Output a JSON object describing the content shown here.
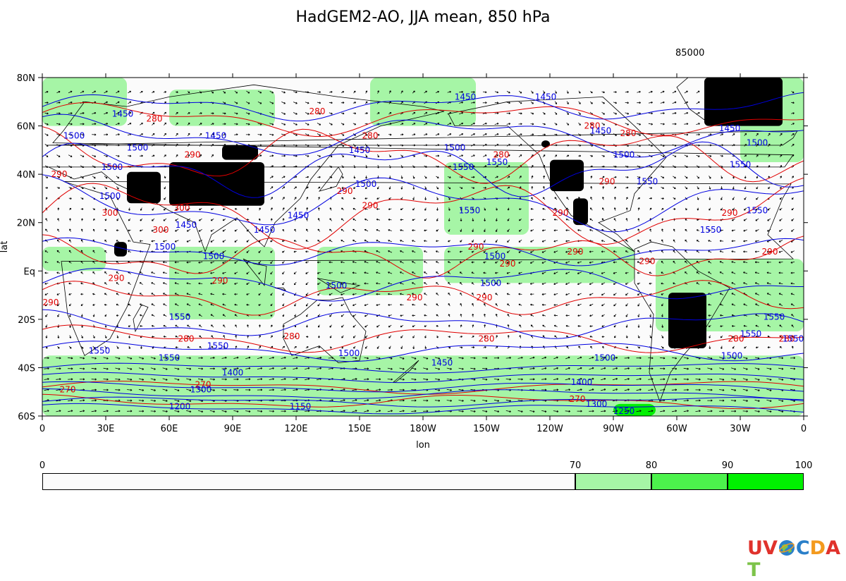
{
  "title": "HadGEM2-AO, JJA mean, 850 hPa",
  "level_label": "85000",
  "axes": {
    "xlabel": "lon",
    "ylabel": "lat",
    "xticks": [
      "0",
      "30E",
      "60E",
      "90E",
      "120E",
      "150E",
      "180W",
      "150W",
      "120W",
      "90W",
      "60W",
      "30W",
      "0"
    ],
    "yticks": [
      "80N",
      "60N",
      "40N",
      "20N",
      "Eq",
      "20S",
      "40S",
      "60S"
    ]
  },
  "legend": {
    "ticks": [
      "0",
      "70",
      "80",
      "90",
      "100"
    ],
    "colors": [
      "#fbfbfb",
      "#a6f5a6",
      "#4cf24c",
      "#00f000"
    ]
  },
  "map_colors": {
    "high_ground": "#000000",
    "temperature_contour": "#e00000",
    "height_contour": "#0000e0",
    "coastline": "#000000",
    "wind_vector": "#000000"
  },
  "chart_data": {
    "type": "heatmap",
    "title": "HadGEM2-AO, JJA mean, 850 hPa",
    "level": "85000",
    "xlabel": "lon",
    "ylabel": "lat",
    "lon_range": [
      0,
      360
    ],
    "lat_range": [
      -60,
      80
    ],
    "fill_levels": [
      0,
      70,
      80,
      90,
      100
    ],
    "temperature_contours": {
      "color": "#e00000",
      "labels": [
        {
          "v": "280",
          "lon": 53,
          "lat": 63
        },
        {
          "v": "280",
          "lon": 130,
          "lat": 66
        },
        {
          "v": "280",
          "lon": 155,
          "lat": 56
        },
        {
          "v": "280",
          "lon": 217,
          "lat": 48
        },
        {
          "v": "280",
          "lon": 260,
          "lat": 60
        },
        {
          "v": "280",
          "lon": 277,
          "lat": 57
        },
        {
          "v": "280",
          "lon": 68,
          "lat": -28
        },
        {
          "v": "280",
          "lon": 118,
          "lat": -27
        },
        {
          "v": "280",
          "lon": 210,
          "lat": -28
        },
        {
          "v": "280",
          "lon": 328,
          "lat": -28
        },
        {
          "v": "280",
          "lon": 352,
          "lat": -28
        },
        {
          "v": "290",
          "lon": 8,
          "lat": 40
        },
        {
          "v": "290",
          "lon": 71,
          "lat": 48
        },
        {
          "v": "290",
          "lon": 143,
          "lat": 33
        },
        {
          "v": "290",
          "lon": 155,
          "lat": 27
        },
        {
          "v": "290",
          "lon": 245,
          "lat": 24
        },
        {
          "v": "290",
          "lon": 325,
          "lat": 24
        },
        {
          "v": "290",
          "lon": 205,
          "lat": 10
        },
        {
          "v": "290",
          "lon": 220,
          "lat": 3
        },
        {
          "v": "290",
          "lon": 252,
          "lat": 8
        },
        {
          "v": "290",
          "lon": 286,
          "lat": 4
        },
        {
          "v": "290",
          "lon": 344,
          "lat": 8
        },
        {
          "v": "290",
          "lon": 84,
          "lat": -4
        },
        {
          "v": "290",
          "lon": 176,
          "lat": -11
        },
        {
          "v": "290",
          "lon": 209,
          "lat": -11
        },
        {
          "v": "290",
          "lon": 35,
          "lat": -3
        },
        {
          "v": "290",
          "lon": 4,
          "lat": -13
        },
        {
          "v": "290",
          "lon": 267,
          "lat": 37
        },
        {
          "v": "300",
          "lon": 32,
          "lat": 24
        },
        {
          "v": "300",
          "lon": 66,
          "lat": 26
        },
        {
          "v": "300",
          "lon": 56,
          "lat": 17
        },
        {
          "v": "270",
          "lon": 12,
          "lat": -49
        },
        {
          "v": "270",
          "lon": 76,
          "lat": -47
        },
        {
          "v": "270",
          "lon": 253,
          "lat": -53
        }
      ]
    },
    "height_contours": {
      "color": "#0000e0",
      "labels": [
        {
          "v": "1450",
          "lon": 38,
          "lat": 65
        },
        {
          "v": "1500",
          "lon": 15,
          "lat": 56
        },
        {
          "v": "1450",
          "lon": 82,
          "lat": 56
        },
        {
          "v": "1500",
          "lon": 45,
          "lat": 51
        },
        {
          "v": "1450",
          "lon": 150,
          "lat": 50
        },
        {
          "v": "1500",
          "lon": 195,
          "lat": 51
        },
        {
          "v": "1450",
          "lon": 200,
          "lat": 72
        },
        {
          "v": "1450",
          "lon": 238,
          "lat": 72
        },
        {
          "v": "1450",
          "lon": 264,
          "lat": 58
        },
        {
          "v": "1450",
          "lon": 325,
          "lat": 59
        },
        {
          "v": "1500",
          "lon": 275,
          "lat": 48
        },
        {
          "v": "1500",
          "lon": 338,
          "lat": 53
        },
        {
          "v": "1550",
          "lon": 199,
          "lat": 43
        },
        {
          "v": "1550",
          "lon": 215,
          "lat": 45
        },
        {
          "v": "1550",
          "lon": 286,
          "lat": 37
        },
        {
          "v": "1550",
          "lon": 330,
          "lat": 44
        },
        {
          "v": "1550",
          "lon": 202,
          "lat": 25
        },
        {
          "v": "1550",
          "lon": 338,
          "lat": 25
        },
        {
          "v": "1550",
          "lon": 316,
          "lat": 17
        },
        {
          "v": "1500",
          "lon": 33,
          "lat": 43
        },
        {
          "v": "1500",
          "lon": 32,
          "lat": 31
        },
        {
          "v": "1500",
          "lon": 153,
          "lat": 36
        },
        {
          "v": "1450",
          "lon": 68,
          "lat": 19
        },
        {
          "v": "1450",
          "lon": 105,
          "lat": 17
        },
        {
          "v": "1450",
          "lon": 121,
          "lat": 23
        },
        {
          "v": "1500",
          "lon": 58,
          "lat": 10
        },
        {
          "v": "1500",
          "lon": 81,
          "lat": 6
        },
        {
          "v": "1500",
          "lon": 214,
          "lat": 6
        },
        {
          "v": "1500",
          "lon": 212,
          "lat": -5
        },
        {
          "v": "1500",
          "lon": 139,
          "lat": -6
        },
        {
          "v": "1550",
          "lon": 65,
          "lat": -19
        },
        {
          "v": "1550",
          "lon": 27,
          "lat": -33
        },
        {
          "v": "1550",
          "lon": 60,
          "lat": -36
        },
        {
          "v": "1550",
          "lon": 83,
          "lat": -31
        },
        {
          "v": "1500",
          "lon": 145,
          "lat": -34
        },
        {
          "v": "1450",
          "lon": 189,
          "lat": -38
        },
        {
          "v": "1500",
          "lon": 266,
          "lat": -36
        },
        {
          "v": "1500",
          "lon": 326,
          "lat": -35
        },
        {
          "v": "1550",
          "lon": 346,
          "lat": -19
        },
        {
          "v": "1550",
          "lon": 335,
          "lat": -26
        },
        {
          "v": "1550",
          "lon": 355,
          "lat": -28
        },
        {
          "v": "1400",
          "lon": 90,
          "lat": -42
        },
        {
          "v": "1400",
          "lon": 255,
          "lat": -46
        },
        {
          "v": "1300",
          "lon": 75,
          "lat": -49
        },
        {
          "v": "1300",
          "lon": 262,
          "lat": -55
        },
        {
          "v": "1200",
          "lon": 65,
          "lat": -56
        },
        {
          "v": "1150",
          "lon": 122,
          "lat": -56
        },
        {
          "v": "1250",
          "lon": 275,
          "lat": -58
        }
      ]
    },
    "high_ground_regions": [
      {
        "lon": [
          60,
          105
        ],
        "lat": [
          27,
          45
        ]
      },
      {
        "lon": [
          85,
          102
        ],
        "lat": [
          46,
          52
        ]
      },
      {
        "lon": [
          40,
          56
        ],
        "lat": [
          28,
          41
        ]
      },
      {
        "lon": [
          240,
          256
        ],
        "lat": [
          33,
          46
        ]
      },
      {
        "lon": [
          251,
          258
        ],
        "lat": [
          19,
          30
        ]
      },
      {
        "lon": [
          296,
          314
        ],
        "lat": [
          -32,
          -9
        ]
      },
      {
        "lon": [
          313,
          350
        ],
        "lat": [
          60,
          80
        ]
      },
      {
        "lon": [
          34,
          40
        ],
        "lat": [
          6,
          12
        ]
      },
      {
        "lon": [
          236,
          240
        ],
        "lat": [
          51,
          54
        ]
      }
    ],
    "fill_regions": [
      {
        "level": 70,
        "lon": [
          0,
          360
        ],
        "lat": [
          -60,
          -35
        ]
      },
      {
        "level": 70,
        "lon": [
          0,
          30
        ],
        "lat": [
          -60,
          -38
        ]
      },
      {
        "level": 80,
        "lon": [
          0,
          30
        ],
        "lat": [
          -56,
          -52
        ]
      },
      {
        "level": 70,
        "lon": [
          0,
          130
        ],
        "lat": [
          -60,
          -48
        ]
      },
      {
        "level": 90,
        "lon": [
          270,
          290
        ],
        "lat": [
          -60,
          -55
        ]
      },
      {
        "level": 70,
        "lon": [
          0,
          40
        ],
        "lat": [
          60,
          80
        ]
      },
      {
        "level": 70,
        "lon": [
          60,
          110
        ],
        "lat": [
          60,
          75
        ]
      },
      {
        "level": 70,
        "lon": [
          155,
          205
        ],
        "lat": [
          60,
          80
        ]
      },
      {
        "level": 70,
        "lon": [
          330,
          360
        ],
        "lat": [
          45,
          80
        ]
      },
      {
        "level": 70,
        "lon": [
          0,
          30
        ],
        "lat": [
          0,
          10
        ]
      },
      {
        "level": 70,
        "lon": [
          60,
          110
        ],
        "lat": [
          -20,
          10
        ]
      },
      {
        "level": 70,
        "lon": [
          130,
          180
        ],
        "lat": [
          -10,
          10
        ]
      },
      {
        "level": 70,
        "lon": [
          190,
          280
        ],
        "lat": [
          -5,
          10
        ]
      },
      {
        "level": 70,
        "lon": [
          290,
          360
        ],
        "lat": [
          -25,
          5
        ]
      },
      {
        "level": 70,
        "lon": [
          190,
          230
        ],
        "lat": [
          15,
          45
        ]
      }
    ]
  }
}
